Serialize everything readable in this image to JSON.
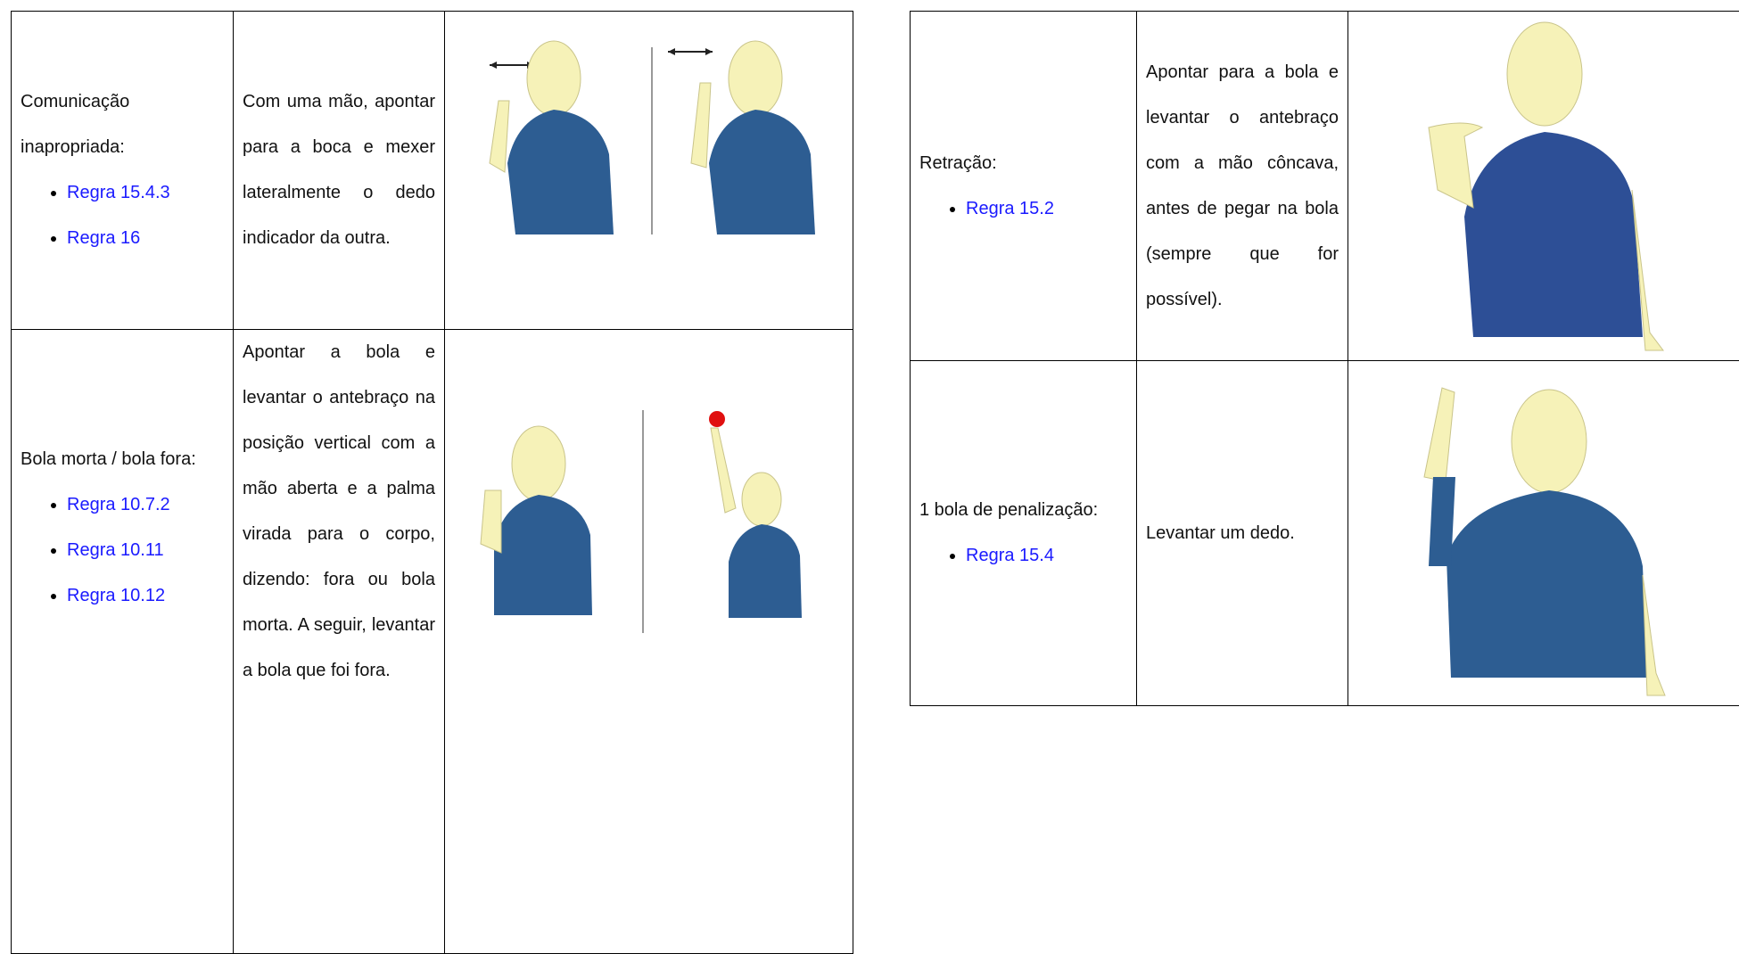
{
  "tables": [
    {
      "rows": [
        {
          "label": "Comunicação inapropriada:",
          "rules": [
            "Regra 15.4.3",
            "Regra 16"
          ],
          "description": "Com uma mão, apontar para a boca e mexer lateralmente o dedo indicador da outra."
        },
        {
          "label": "Bola morta / bola fora:",
          "rules": [
            "Regra 10.7.2",
            "Regra 10.11",
            "Regra 10.12"
          ],
          "description": "Apontar a bola e levantar o antebraço na posição vertical com a mão aberta e a palma virada para o corpo, dizendo: fora ou bola morta. A seguir, levantar a bola que foi fora."
        }
      ]
    },
    {
      "rows": [
        {
          "label": "Retração:",
          "rules": [
            "Regra 15.2"
          ],
          "description": "Apontar para a bola e levantar o antebraço com a mão côncava, antes de pegar na bola (sempre que for possível)."
        },
        {
          "label": "1 bola de penalização:",
          "rules": [
            "Regra 15.4"
          ],
          "description": "Levantar um dedo."
        }
      ]
    }
  ]
}
